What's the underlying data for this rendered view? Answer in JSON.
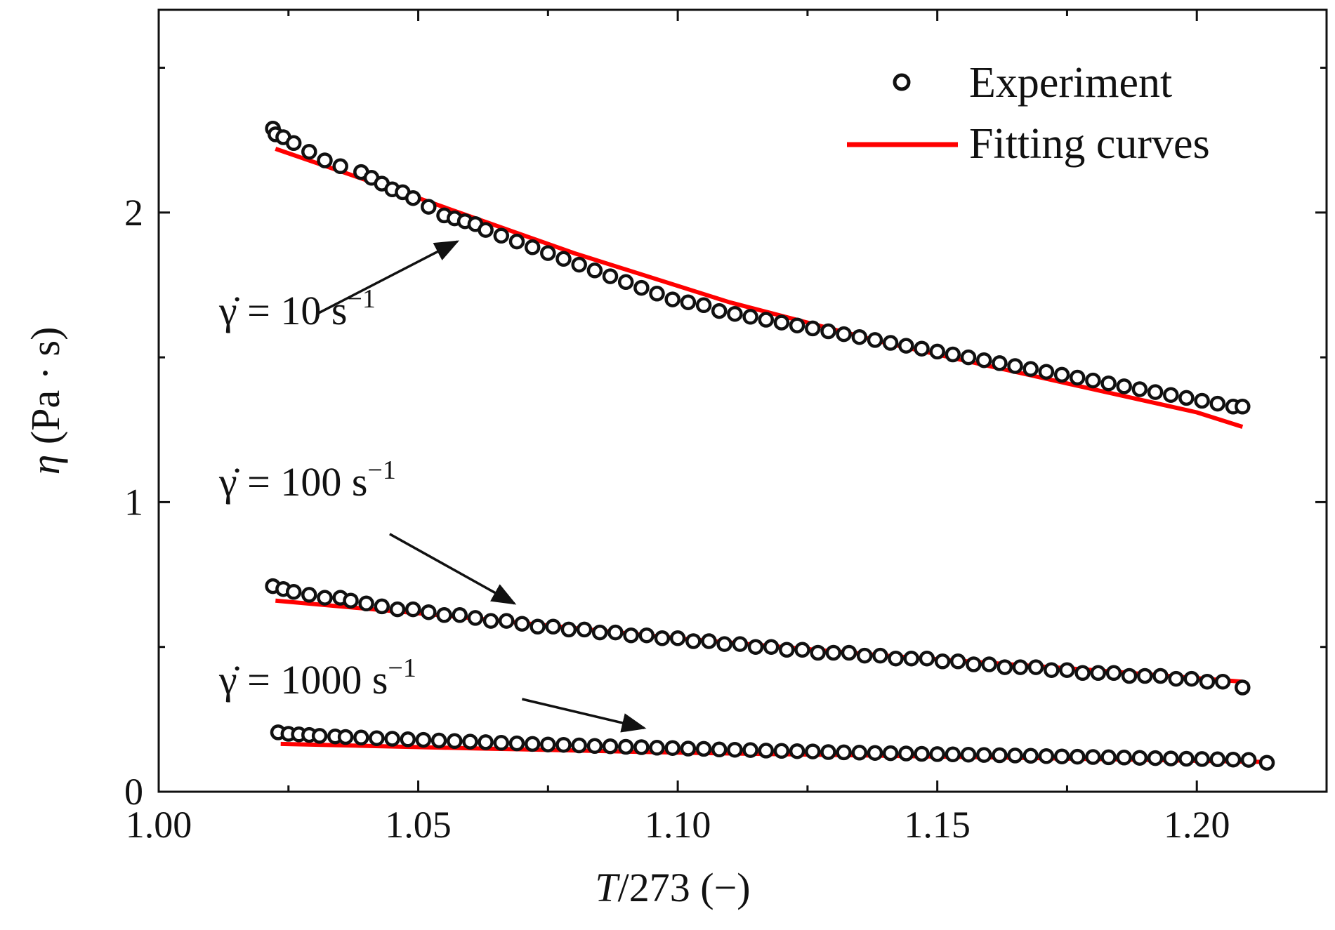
{
  "chart_data": {
    "type": "scatter",
    "xlabel": "T/273 (−)",
    "xlabel_var": "T",
    "xlabel_rest": "/273 (−)",
    "ylabel": "η (Pa · s)",
    "ylabel_var": "η",
    "ylabel_rest": " (Pa · s)",
    "xlim": [
      1.0,
      1.225
    ],
    "ylim": [
      0,
      2.7
    ],
    "xticks": [
      1.0,
      1.05,
      1.1,
      1.15,
      1.2
    ],
    "xtick_labels": [
      "1.00",
      "1.05",
      "1.10",
      "1.15",
      "1.20"
    ],
    "yticks": [
      0,
      1,
      2
    ],
    "ytick_labels": [
      "0",
      "1",
      "2"
    ],
    "y_minor_ticks": [
      0.5,
      1.5,
      2.5
    ],
    "legend": {
      "placement": "top-right",
      "experiment_label": "Experiment",
      "fit_label": "Fitting curves"
    },
    "colors": {
      "marker_edge": "#111111",
      "fit": "#ff0000",
      "axis": "#111111"
    },
    "series": [
      {
        "name": "γ̇ = 10 s⁻¹",
        "anno_base": "γ̇ = 10 s",
        "anno_sup": "−1",
        "x": [
          1.022,
          1.0225,
          1.024,
          1.026,
          1.029,
          1.032,
          1.035,
          1.039,
          1.041,
          1.043,
          1.045,
          1.047,
          1.049,
          1.052,
          1.055,
          1.057,
          1.059,
          1.061,
          1.063,
          1.066,
          1.069,
          1.072,
          1.075,
          1.078,
          1.081,
          1.084,
          1.087,
          1.09,
          1.093,
          1.096,
          1.099,
          1.102,
          1.105,
          1.108,
          1.111,
          1.114,
          1.117,
          1.12,
          1.123,
          1.126,
          1.129,
          1.132,
          1.135,
          1.138,
          1.141,
          1.144,
          1.147,
          1.15,
          1.153,
          1.156,
          1.159,
          1.162,
          1.165,
          1.168,
          1.171,
          1.174,
          1.177,
          1.18,
          1.183,
          1.186,
          1.189,
          1.192,
          1.195,
          1.198,
          1.201,
          1.204,
          1.207,
          1.2088
        ],
        "y": [
          2.29,
          2.27,
          2.26,
          2.24,
          2.21,
          2.18,
          2.16,
          2.14,
          2.12,
          2.1,
          2.08,
          2.07,
          2.05,
          2.02,
          1.99,
          1.98,
          1.97,
          1.96,
          1.94,
          1.92,
          1.9,
          1.88,
          1.86,
          1.84,
          1.82,
          1.8,
          1.78,
          1.76,
          1.74,
          1.72,
          1.7,
          1.69,
          1.68,
          1.66,
          1.65,
          1.64,
          1.63,
          1.62,
          1.61,
          1.6,
          1.59,
          1.58,
          1.57,
          1.56,
          1.55,
          1.54,
          1.53,
          1.52,
          1.51,
          1.5,
          1.49,
          1.48,
          1.47,
          1.46,
          1.45,
          1.44,
          1.43,
          1.42,
          1.41,
          1.4,
          1.39,
          1.38,
          1.37,
          1.36,
          1.35,
          1.34,
          1.33,
          1.33
        ],
        "fit_x": [
          1.0225,
          1.05,
          1.08,
          1.11,
          1.14,
          1.17,
          1.2,
          1.2088
        ],
        "fit_y": [
          2.22,
          2.05,
          1.86,
          1.69,
          1.55,
          1.43,
          1.31,
          1.26
        ]
      },
      {
        "name": "γ̇ = 100 s⁻¹",
        "anno_base": "γ̇ = 100 s",
        "anno_sup": "−1",
        "x": [
          1.022,
          1.024,
          1.026,
          1.029,
          1.032,
          1.035,
          1.037,
          1.04,
          1.043,
          1.046,
          1.049,
          1.052,
          1.055,
          1.058,
          1.061,
          1.064,
          1.067,
          1.07,
          1.073,
          1.076,
          1.079,
          1.082,
          1.085,
          1.088,
          1.091,
          1.094,
          1.097,
          1.1,
          1.103,
          1.106,
          1.109,
          1.112,
          1.115,
          1.118,
          1.121,
          1.124,
          1.127,
          1.13,
          1.133,
          1.136,
          1.139,
          1.142,
          1.145,
          1.148,
          1.151,
          1.154,
          1.157,
          1.16,
          1.163,
          1.166,
          1.169,
          1.172,
          1.175,
          1.178,
          1.181,
          1.184,
          1.187,
          1.19,
          1.193,
          1.196,
          1.199,
          1.202,
          1.205,
          1.2088
        ],
        "y": [
          0.71,
          0.7,
          0.69,
          0.68,
          0.67,
          0.67,
          0.66,
          0.65,
          0.64,
          0.63,
          0.63,
          0.62,
          0.61,
          0.61,
          0.6,
          0.59,
          0.59,
          0.58,
          0.57,
          0.57,
          0.56,
          0.56,
          0.55,
          0.55,
          0.54,
          0.54,
          0.53,
          0.53,
          0.52,
          0.52,
          0.51,
          0.51,
          0.5,
          0.5,
          0.49,
          0.49,
          0.48,
          0.48,
          0.48,
          0.47,
          0.47,
          0.46,
          0.46,
          0.46,
          0.45,
          0.45,
          0.44,
          0.44,
          0.43,
          0.43,
          0.43,
          0.42,
          0.42,
          0.41,
          0.41,
          0.41,
          0.4,
          0.4,
          0.4,
          0.39,
          0.39,
          0.38,
          0.38,
          0.36
        ],
        "fit_x": [
          1.0225,
          1.06,
          1.1,
          1.14,
          1.18,
          1.2088
        ],
        "fit_y": [
          0.66,
          0.6,
          0.53,
          0.47,
          0.42,
          0.38
        ]
      },
      {
        "name": "γ̇ = 1000 s⁻¹",
        "anno_base": "γ̇ = 1000 s",
        "anno_sup": "−1",
        "x": [
          1.023,
          1.025,
          1.027,
          1.029,
          1.031,
          1.034,
          1.036,
          1.039,
          1.042,
          1.045,
          1.048,
          1.051,
          1.054,
          1.057,
          1.06,
          1.063,
          1.066,
          1.069,
          1.072,
          1.075,
          1.078,
          1.081,
          1.084,
          1.087,
          1.09,
          1.093,
          1.096,
          1.099,
          1.102,
          1.105,
          1.108,
          1.111,
          1.114,
          1.117,
          1.12,
          1.123,
          1.126,
          1.129,
          1.132,
          1.135,
          1.138,
          1.141,
          1.144,
          1.147,
          1.15,
          1.153,
          1.156,
          1.159,
          1.162,
          1.165,
          1.168,
          1.171,
          1.174,
          1.177,
          1.18,
          1.183,
          1.186,
          1.189,
          1.192,
          1.195,
          1.198,
          1.201,
          1.204,
          1.207,
          1.21,
          1.2135
        ],
        "y": [
          0.205,
          0.2,
          0.198,
          0.196,
          0.193,
          0.191,
          0.189,
          0.187,
          0.185,
          0.183,
          0.181,
          0.179,
          0.177,
          0.175,
          0.173,
          0.171,
          0.169,
          0.167,
          0.165,
          0.163,
          0.162,
          0.16,
          0.158,
          0.157,
          0.155,
          0.154,
          0.152,
          0.151,
          0.149,
          0.148,
          0.146,
          0.145,
          0.144,
          0.142,
          0.141,
          0.14,
          0.139,
          0.137,
          0.136,
          0.135,
          0.134,
          0.133,
          0.132,
          0.131,
          0.13,
          0.129,
          0.128,
          0.127,
          0.126,
          0.125,
          0.124,
          0.123,
          0.122,
          0.121,
          0.12,
          0.119,
          0.118,
          0.117,
          0.116,
          0.115,
          0.114,
          0.113,
          0.112,
          0.111,
          0.11,
          0.1
        ],
        "fit_x": [
          1.0235,
          1.06,
          1.1,
          1.14,
          1.18,
          1.2125
        ],
        "fit_y": [
          0.165,
          0.15,
          0.135,
          0.124,
          0.113,
          0.103
        ]
      }
    ],
    "annotations": [
      {
        "series": 0,
        "arrow_from": [
          1.0305,
          1.65
        ],
        "arrow_to": [
          1.0575,
          1.9
        ]
      },
      {
        "series": 1,
        "arrow_from": [
          1.0445,
          0.89
        ],
        "arrow_to": [
          1.0685,
          0.65
        ]
      },
      {
        "series": 2,
        "arrow_from": [
          1.07,
          0.32
        ],
        "arrow_to": [
          1.0935,
          0.22
        ]
      }
    ]
  }
}
